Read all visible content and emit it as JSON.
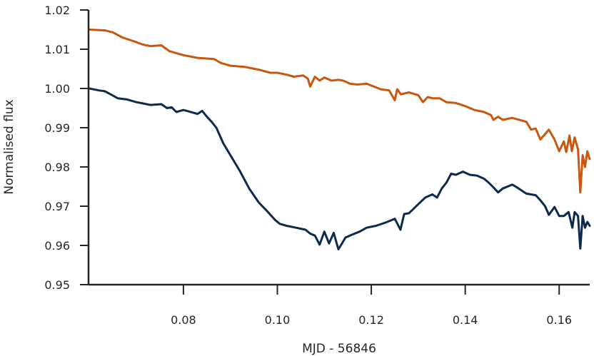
{
  "chart_data": {
    "type": "line",
    "xlabel": "MJD - 56846",
    "ylabel": "Normalised flux",
    "xlim": [
      0.0598,
      0.1665
    ],
    "ylim": [
      0.95,
      1.02
    ],
    "xticks": [
      0.08,
      0.1,
      0.12,
      0.14,
      0.16
    ],
    "xtick_labels": [
      "0.08",
      "0.10",
      "0.12",
      "0.14",
      "0.16"
    ],
    "yticks": [
      0.95,
      0.96,
      0.97,
      0.98,
      0.99,
      1.0,
      1.01,
      1.02
    ],
    "ytick_labels": [
      "0.95",
      "0.96",
      "0.97",
      "0.98",
      "0.99",
      "1.00",
      "1.01",
      "1.02"
    ],
    "grid": false,
    "series": [
      {
        "color": "#c8570f",
        "x": [
          0.06,
          0.0633,
          0.065,
          0.067,
          0.07,
          0.0713,
          0.073,
          0.0753,
          0.077,
          0.08,
          0.083,
          0.0865,
          0.088,
          0.09,
          0.093,
          0.096,
          0.0985,
          0.1,
          0.102,
          0.1035,
          0.1055,
          0.1065,
          0.107,
          0.108,
          0.109,
          0.11,
          0.1115,
          0.113,
          0.114,
          0.1155,
          0.117,
          0.119,
          0.121,
          0.122,
          0.1238,
          0.125,
          0.1255,
          0.1263,
          0.128,
          0.13,
          0.131,
          0.132,
          0.133,
          0.1345,
          0.136,
          0.138,
          0.14,
          0.142,
          0.144,
          0.1455,
          0.146,
          0.147,
          0.148,
          0.15,
          0.153,
          0.154,
          0.155,
          0.156,
          0.1578,
          0.159,
          0.16,
          0.161,
          0.1615,
          0.1622,
          0.1627,
          0.1633,
          0.164,
          0.1645,
          0.165,
          0.1655,
          0.166,
          0.1665
        ],
        "y": [
          1.015,
          1.0148,
          1.0143,
          1.013,
          1.0118,
          1.0112,
          1.0108,
          1.011,
          1.0095,
          1.0085,
          1.0078,
          1.0075,
          1.0065,
          1.0058,
          1.0055,
          1.0048,
          1.004,
          1.004,
          1.0035,
          1.003,
          1.0033,
          1.0025,
          1.0005,
          1.003,
          1.002,
          1.0028,
          1.002,
          1.0022,
          1.002,
          1.0012,
          1.001,
          1.0012,
          1.0003,
          0.9998,
          0.9995,
          0.997,
          0.9998,
          0.9985,
          0.999,
          0.9983,
          0.9965,
          0.9978,
          0.9975,
          0.9975,
          0.9965,
          0.9963,
          0.9955,
          0.9945,
          0.994,
          0.9932,
          0.992,
          0.9928,
          0.992,
          0.9925,
          0.9915,
          0.9895,
          0.9898,
          0.987,
          0.9895,
          0.987,
          0.984,
          0.9865,
          0.9838,
          0.988,
          0.984,
          0.9875,
          0.9845,
          0.9735,
          0.983,
          0.98,
          0.984,
          0.982
        ]
      },
      {
        "color": "#0d2a4e",
        "x": [
          0.06,
          0.062,
          0.0633,
          0.0645,
          0.066,
          0.068,
          0.07,
          0.0713,
          0.073,
          0.0753,
          0.0765,
          0.0775,
          0.0785,
          0.08,
          0.081,
          0.083,
          0.084,
          0.085,
          0.086,
          0.087,
          0.0885,
          0.09,
          0.092,
          0.094,
          0.096,
          0.098,
          0.0995,
          0.1005,
          0.102,
          0.104,
          0.106,
          0.107,
          0.108,
          0.109,
          0.11,
          0.111,
          0.112,
          0.113,
          0.1145,
          0.116,
          0.1175,
          0.119,
          0.121,
          0.123,
          0.125,
          0.1262,
          0.127,
          0.128,
          0.13,
          0.1315,
          0.133,
          0.134,
          0.135,
          0.136,
          0.137,
          0.138,
          0.1395,
          0.141,
          0.1425,
          0.144,
          0.145,
          0.146,
          0.147,
          0.148,
          0.149,
          0.15,
          0.151,
          0.152,
          0.153,
          0.154,
          0.155,
          0.156,
          0.157,
          0.1578,
          0.159,
          0.16,
          0.161,
          0.162,
          0.1628,
          0.1633,
          0.164,
          0.1645,
          0.165,
          0.1655,
          0.166,
          0.1665
        ],
        "y": [
          1.0,
          0.9995,
          0.9993,
          0.9985,
          0.9975,
          0.9972,
          0.9965,
          0.9962,
          0.9958,
          0.996,
          0.995,
          0.9952,
          0.994,
          0.9945,
          0.9942,
          0.9935,
          0.9943,
          0.9928,
          0.9915,
          0.99,
          0.986,
          0.983,
          0.979,
          0.9745,
          0.971,
          0.9685,
          0.9665,
          0.9655,
          0.965,
          0.9645,
          0.964,
          0.963,
          0.9625,
          0.9602,
          0.9635,
          0.9605,
          0.9632,
          0.959,
          0.962,
          0.9628,
          0.9635,
          0.9645,
          0.965,
          0.9658,
          0.9668,
          0.964,
          0.968,
          0.9682,
          0.9705,
          0.9722,
          0.973,
          0.9722,
          0.9745,
          0.976,
          0.9783,
          0.978,
          0.9788,
          0.978,
          0.9778,
          0.977,
          0.976,
          0.9748,
          0.9735,
          0.9745,
          0.975,
          0.9755,
          0.9748,
          0.974,
          0.9732,
          0.973,
          0.9728,
          0.9715,
          0.97,
          0.9678,
          0.9698,
          0.9675,
          0.9675,
          0.9685,
          0.9645,
          0.9685,
          0.9675,
          0.9592,
          0.9675,
          0.9645,
          0.966,
          0.965
        ]
      }
    ]
  }
}
